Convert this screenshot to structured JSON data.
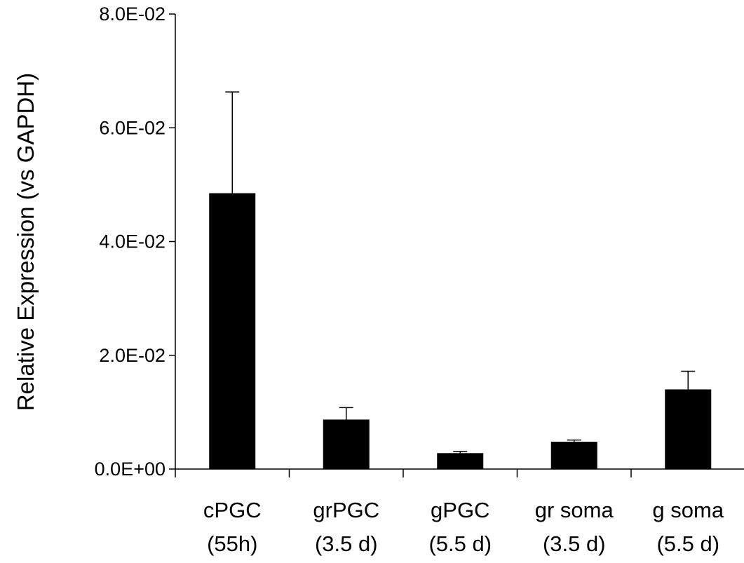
{
  "chart_data": {
    "type": "bar",
    "title": "",
    "xlabel": "",
    "ylabel": "Relative Expression (vs GAPDH)",
    "ylim": [
      0,
      0.08
    ],
    "yticks": [
      0,
      0.02,
      0.04,
      0.06,
      0.08
    ],
    "ytick_labels": [
      "0.0E+00",
      "2.0E-02",
      "4.0E-02",
      "6.0E-02",
      "8.0E-02"
    ],
    "categories": [
      {
        "line1": "cPGC",
        "line2": "(55h)"
      },
      {
        "line1": "grPGC",
        "line2": "(3.5 d)"
      },
      {
        "line1": "gPGC",
        "line2": "(5.5 d)"
      },
      {
        "line1": "gr soma",
        "line2": "(3.5 d)"
      },
      {
        "line1": "g soma",
        "line2": "(5.5 d)"
      }
    ],
    "values": [
      0.0485,
      0.0087,
      0.0028,
      0.0048,
      0.014
    ],
    "errors": [
      0.0178,
      0.0021,
      0.0003,
      0.0003,
      0.0032
    ],
    "bar_color": "#000000",
    "grid": false,
    "legend": "none"
  }
}
